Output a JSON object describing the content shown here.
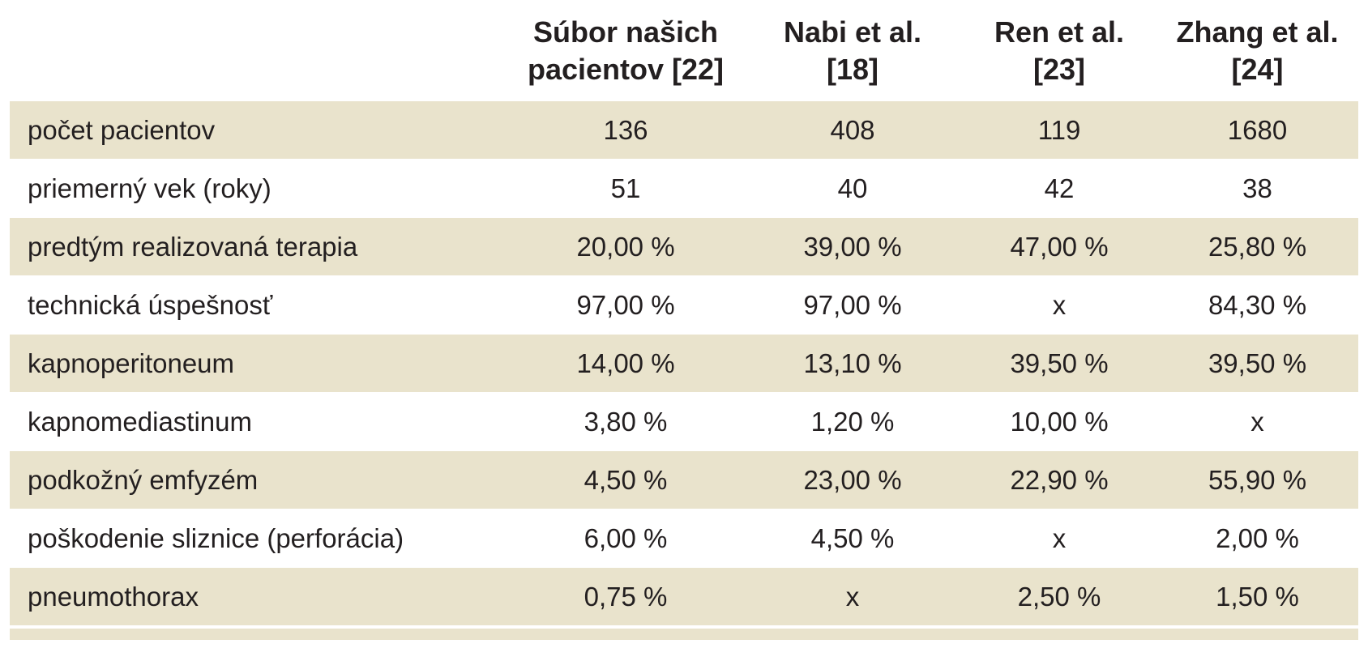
{
  "table": {
    "headers": [
      "",
      "Súbor našich pacientov [22]",
      "Nabi et al. [18]",
      "Ren et al. [23]",
      "Zhang et al. [24]"
    ],
    "header_lines": [
      [
        "",
        ""
      ],
      [
        "Súbor našich",
        "pacientov [22]"
      ],
      [
        "Nabi et al.",
        "[18]"
      ],
      [
        "Ren et al.",
        "[23]"
      ],
      [
        "Zhang et al.",
        "[24]"
      ]
    ],
    "rows": [
      {
        "label": "počet pacientov",
        "values": [
          "136",
          "408",
          "119",
          "1680"
        ]
      },
      {
        "label": "priemerný vek (roky)",
        "values": [
          "51",
          "40",
          "42",
          "38"
        ]
      },
      {
        "label": "predtým realizovaná terapia",
        "values": [
          "20,00 %",
          "39,00 %",
          "47,00 %",
          "25,80 %"
        ]
      },
      {
        "label": "technická úspešnosť",
        "values": [
          "97,00 %",
          "97,00 %",
          "x",
          "84,30 %"
        ]
      },
      {
        "label": "kapnoperitoneum",
        "values": [
          "14,00 %",
          "13,10 %",
          "39,50 %",
          "39,50 %"
        ]
      },
      {
        "label": "kapnomediastinum",
        "values": [
          "3,80 %",
          "1,20 %",
          "10,00 %",
          "x"
        ]
      },
      {
        "label": "podkožný emfyzém",
        "values": [
          "4,50 %",
          "23,00 %",
          "22,90 %",
          "55,90 %"
        ]
      },
      {
        "label": "poškodenie sliznice (perforácia)",
        "values": [
          "6,00 %",
          "4,50 %",
          "x",
          "2,00 %"
        ]
      },
      {
        "label": "pneumothorax",
        "values": [
          "0,75 %",
          "x",
          "2,50 %",
          "1,50 %"
        ]
      }
    ]
  },
  "colors": {
    "band": "#e9e3cc",
    "background": "#ffffff",
    "text": "#231f20"
  }
}
